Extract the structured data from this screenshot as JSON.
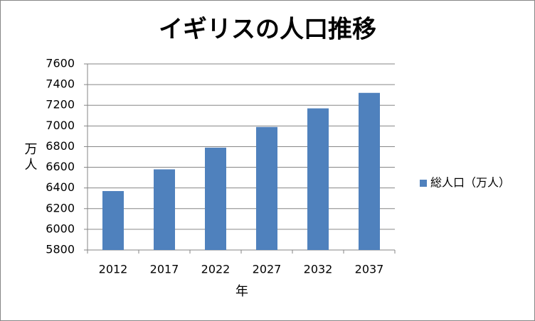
{
  "chart_data": {
    "type": "bar",
    "title": "イギリスの人口推移",
    "y_label": "万人",
    "x_label": "年",
    "categories": [
      "2012",
      "2017",
      "2022",
      "2027",
      "2032",
      "2037"
    ],
    "series": [
      {
        "name": "総人口（万人）",
        "color": "#4f81bd",
        "values": [
          6370,
          6580,
          6790,
          6990,
          7170,
          7320
        ]
      }
    ],
    "ylim": [
      5800,
      7600
    ],
    "yticks": [
      5800,
      6000,
      6200,
      6400,
      6600,
      6800,
      7000,
      7200,
      7400,
      7600
    ],
    "grid": true,
    "legend": "right"
  }
}
